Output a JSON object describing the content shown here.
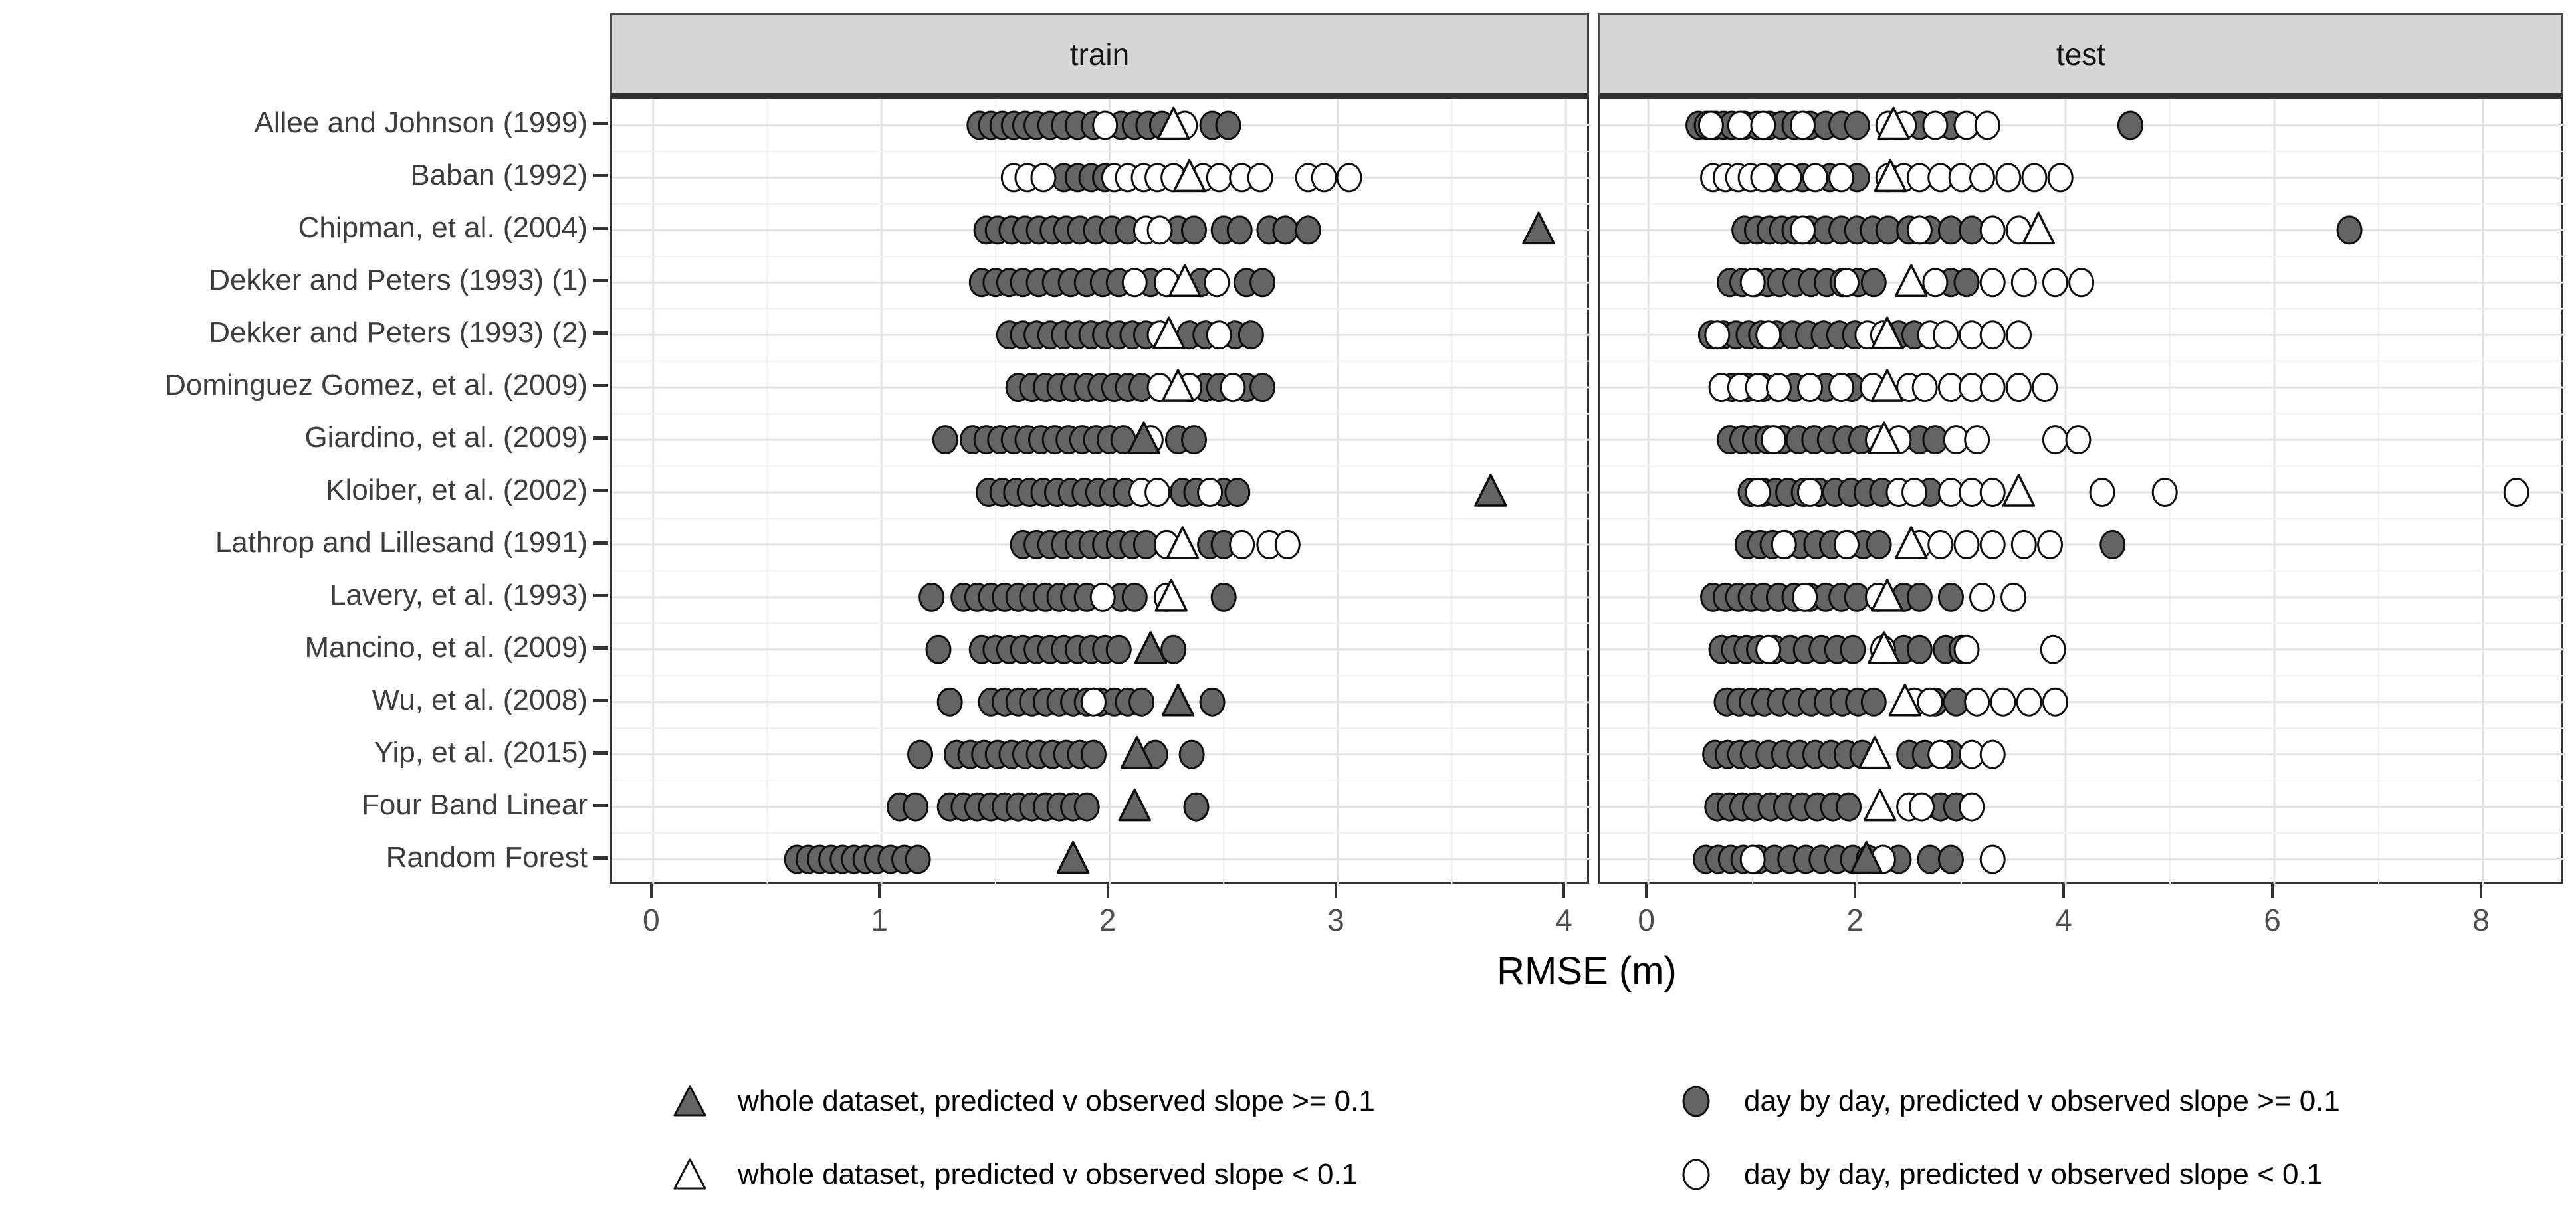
{
  "figure": {
    "facet_train_title": "train",
    "facet_test_title": "test",
    "x_axis_title": "RMSE (m)",
    "colors": {
      "point_fill": "#646464",
      "point_stroke": "#0d0d0d",
      "open_fill": "#ffffff",
      "strip_bg": "#d6d6d6",
      "panel_border": "#333333",
      "grid_major": "#e3e3e3",
      "grid_minor": "#f0f0f0",
      "axis_text": "#4d4d4d"
    }
  },
  "chart_data": {
    "type": "scatter",
    "title": "",
    "xlabel": "RMSE (m)",
    "ylabel": "",
    "grid": true,
    "legend_position": "bottom",
    "legend": [
      {
        "marker": "triangle-filled",
        "label": "whole dataset, predicted v observed slope >= 0.1"
      },
      {
        "marker": "triangle-open",
        "label": "whole dataset, predicted v observed slope < 0.1"
      },
      {
        "marker": "circle-filled",
        "label": "day by day, predicted v observed slope >= 0.1"
      },
      {
        "marker": "circle-open",
        "label": "day by day, predicted v observed slope < 0.1"
      }
    ],
    "facet_panels": [
      {
        "name": "train",
        "x_ticks": [
          0,
          1,
          2,
          3,
          4
        ],
        "x_minor": [
          0.5,
          1.5,
          2.5,
          3.5
        ],
        "xlim": [
          -0.18,
          4.11
        ]
      },
      {
        "name": "test",
        "x_ticks": [
          0,
          2,
          4,
          6,
          8
        ],
        "x_minor": [
          1,
          3,
          5,
          7
        ],
        "xlim": [
          -0.46,
          8.79
        ]
      }
    ],
    "categories": [
      "Allee and Johnson (1999)",
      "Baban (1992)",
      "Chipman, et al. (2004)",
      "Dekker and Peters (1993) (1)",
      "Dekker and Peters (1993) (2)",
      "Dominguez Gomez, et al. (2009)",
      "Giardino, et al. (2009)",
      "Kloiber, et al. (2002)",
      "Lathrop and Lillesand (1991)",
      "Lavery, et al. (1993)",
      "Mancino, et al. (2009)",
      "Wu, et al. (2008)",
      "Yip, et al. (2015)",
      "Four Band Linear",
      "Random Forest"
    ],
    "rows": [
      {
        "label": "Allee and Johnson (1999)",
        "train": {
          "filled_circles": [
            1.43,
            1.48,
            1.53,
            1.58,
            1.63,
            1.68,
            1.74,
            1.8,
            1.86,
            1.93,
            2.05,
            2.11,
            2.17,
            2.23,
            2.45,
            2.52
          ],
          "open_circles": [
            1.98,
            2.33
          ],
          "triangle": {
            "x": 2.28,
            "filled": false
          }
        },
        "test": {
          "filled_circles": [
            0.48,
            0.56,
            0.64,
            0.72,
            0.8,
            0.92,
            1.04,
            1.16,
            1.28,
            1.4,
            1.55,
            1.7,
            1.85,
            2.0,
            2.6,
            2.9,
            4.62
          ],
          "open_circles": [
            0.6,
            0.88,
            1.1,
            1.48,
            2.3,
            2.45,
            2.75,
            3.05,
            3.25
          ],
          "triangle": {
            "x": 2.35,
            "filled": false
          }
        }
      },
      {
        "label": "Baban (1992)",
        "train": {
          "filled_circles": [
            1.8,
            1.86,
            1.92,
            1.98
          ],
          "open_circles": [
            1.58,
            1.64,
            1.71,
            2.02,
            2.08,
            2.15,
            2.21,
            2.28,
            2.41,
            2.48,
            2.58,
            2.66,
            2.87,
            2.94,
            3.05
          ],
          "triangle": {
            "x": 2.35,
            "filled": false
          }
        },
        "test": {
          "filled_circles": [
            1.22,
            1.48,
            1.74,
            2.0
          ],
          "open_circles": [
            0.62,
            0.74,
            0.86,
            0.98,
            1.1,
            1.35,
            1.6,
            1.85,
            2.3,
            2.45,
            2.6,
            2.8,
            3.0,
            3.2,
            3.45,
            3.7,
            3.95
          ],
          "triangle": {
            "x": 2.32,
            "filled": false
          }
        }
      },
      {
        "label": "Chipman, et al. (2004)",
        "train": {
          "filled_circles": [
            1.46,
            1.51,
            1.57,
            1.63,
            1.69,
            1.75,
            1.81,
            1.87,
            1.94,
            2.01,
            2.08,
            2.3,
            2.37,
            2.5,
            2.57,
            2.7,
            2.77,
            2.87
          ],
          "open_circles": [
            2.16,
            2.22
          ],
          "triangle": {
            "x": 3.88,
            "filled": true
          }
        },
        "test": {
          "filled_circles": [
            0.92,
            1.04,
            1.16,
            1.28,
            1.4,
            1.55,
            1.7,
            1.85,
            2.0,
            2.15,
            2.3,
            2.5,
            2.7,
            2.9,
            3.1,
            6.72
          ],
          "open_circles": [
            1.48,
            2.6,
            3.3,
            3.55
          ],
          "triangle": {
            "x": 3.74,
            "filled": false
          }
        }
      },
      {
        "label": "Dekker and Peters (1993) (1)",
        "train": {
          "filled_circles": [
            1.44,
            1.5,
            1.56,
            1.62,
            1.69,
            1.76,
            1.83,
            1.9,
            1.97,
            2.04,
            2.18,
            2.4,
            2.6,
            2.67
          ],
          "open_circles": [
            2.11,
            2.25,
            2.47
          ],
          "triangle": {
            "x": 2.33,
            "filled": false
          }
        },
        "test": {
          "filled_circles": [
            0.78,
            0.9,
            1.02,
            1.14,
            1.26,
            1.41,
            1.56,
            1.71,
            1.86,
            2.01,
            2.16,
            2.9,
            3.05
          ],
          "open_circles": [
            1.0,
            1.9,
            2.75,
            3.3,
            3.6,
            3.9,
            4.15
          ],
          "triangle": {
            "x": 2.52,
            "filled": false
          }
        }
      },
      {
        "label": "Dekker and Peters (1993) (2)",
        "train": {
          "filled_circles": [
            1.56,
            1.62,
            1.68,
            1.74,
            1.8,
            1.86,
            1.92,
            1.98,
            2.04,
            2.1,
            2.16,
            2.35,
            2.42,
            2.55,
            2.62
          ],
          "open_circles": [
            2.22,
            2.48
          ],
          "triangle": {
            "x": 2.26,
            "filled": false
          }
        },
        "test": {
          "filled_circles": [
            0.6,
            0.72,
            0.84,
            0.96,
            1.08,
            1.23,
            1.38,
            1.53,
            1.68,
            1.83,
            1.98,
            2.4,
            2.55
          ],
          "open_circles": [
            0.66,
            1.15,
            2.1,
            2.25,
            2.7,
            2.85,
            3.1,
            3.3,
            3.55
          ],
          "triangle": {
            "x": 2.29,
            "filled": false
          }
        }
      },
      {
        "label": "Dominguez Gomez, et al. (2009)",
        "train": {
          "filled_circles": [
            1.6,
            1.66,
            1.72,
            1.78,
            1.84,
            1.9,
            1.96,
            2.02,
            2.08,
            2.14,
            2.42,
            2.48,
            2.6,
            2.67
          ],
          "open_circles": [
            2.22,
            2.35,
            2.54
          ],
          "triangle": {
            "x": 2.3,
            "filled": false
          }
        },
        "test": {
          "filled_circles": [
            0.8,
            0.95,
            1.1,
            1.4,
            1.7,
            1.95
          ],
          "open_circles": [
            0.7,
            0.88,
            1.05,
            1.25,
            1.55,
            1.85,
            2.15,
            2.5,
            2.65,
            2.9,
            3.1,
            3.3,
            3.55,
            3.8
          ],
          "triangle": {
            "x": 2.29,
            "filled": false
          }
        }
      },
      {
        "label": "Giardino, et al. (2009)",
        "train": {
          "filled_circles": [
            1.28,
            1.4,
            1.46,
            1.52,
            1.58,
            1.64,
            1.7,
            1.76,
            1.82,
            1.88,
            1.94,
            2.0,
            2.06,
            2.3,
            2.37
          ],
          "open_circles": [
            2.18
          ],
          "triangle": {
            "x": 2.15,
            "filled": true
          }
        },
        "test": {
          "filled_circles": [
            0.78,
            0.9,
            1.02,
            1.14,
            1.29,
            1.44,
            1.59,
            1.74,
            1.89,
            2.04,
            2.6,
            2.75
          ],
          "open_circles": [
            1.2,
            2.2,
            2.4,
            2.95,
            3.15,
            3.9,
            4.12
          ],
          "triangle": {
            "x": 2.26,
            "filled": false
          }
        }
      },
      {
        "label": "Kloiber, et al. (2002)",
        "train": {
          "filled_circles": [
            1.47,
            1.53,
            1.59,
            1.65,
            1.71,
            1.77,
            1.83,
            1.89,
            1.95,
            2.01,
            2.07,
            2.32,
            2.38,
            2.5,
            2.56
          ],
          "open_circles": [
            2.14,
            2.21,
            2.44
          ],
          "triangle": {
            "x": 3.67,
            "filled": true
          }
        },
        "test": {
          "filled_circles": [
            0.98,
            1.1,
            1.22,
            1.34,
            1.49,
            1.64,
            1.79,
            1.94,
            2.09,
            2.24,
            2.7
          ],
          "open_circles": [
            1.05,
            1.55,
            2.4,
            2.55,
            2.9,
            3.1,
            3.3,
            4.35,
            4.95,
            8.32
          ],
          "triangle": {
            "x": 3.55,
            "filled": false
          }
        }
      },
      {
        "label": "Lathrop and Lillesand (1991)",
        "train": {
          "filled_circles": [
            1.62,
            1.68,
            1.74,
            1.8,
            1.86,
            1.92,
            1.98,
            2.04,
            2.1,
            2.16,
            2.44,
            2.5
          ],
          "open_circles": [
            2.25,
            2.58,
            2.7,
            2.78
          ],
          "triangle": {
            "x": 2.32,
            "filled": false
          }
        },
        "test": {
          "filled_circles": [
            0.95,
            1.07,
            1.19,
            1.31,
            1.46,
            1.61,
            1.76,
            1.91,
            2.06,
            2.21,
            4.45
          ],
          "open_circles": [
            1.3,
            1.9,
            2.6,
            2.8,
            3.05,
            3.3,
            3.6,
            3.85
          ],
          "triangle": {
            "x": 2.52,
            "filled": false
          }
        }
      },
      {
        "label": "Lavery, et al. (1993)",
        "train": {
          "filled_circles": [
            1.22,
            1.36,
            1.42,
            1.48,
            1.54,
            1.6,
            1.66,
            1.72,
            1.78,
            1.84,
            1.9,
            2.05,
            2.11,
            2.5
          ],
          "open_circles": [
            1.97,
            2.25
          ],
          "triangle": {
            "x": 2.27,
            "filled": false
          }
        },
        "test": {
          "filled_circles": [
            0.62,
            0.74,
            0.86,
            0.98,
            1.1,
            1.25,
            1.4,
            1.55,
            1.7,
            1.85,
            2.0,
            2.45,
            2.6,
            2.9
          ],
          "open_circles": [
            1.5,
            2.2,
            3.2,
            3.5
          ],
          "triangle": {
            "x": 2.29,
            "filled": false
          }
        }
      },
      {
        "label": "Mancino, et al. (2009)",
        "train": {
          "filled_circles": [
            1.25,
            1.44,
            1.5,
            1.56,
            1.62,
            1.68,
            1.74,
            1.8,
            1.86,
            1.92,
            1.98,
            2.04,
            2.28
          ],
          "open_circles": [],
          "triangle": {
            "x": 2.18,
            "filled": true
          }
        },
        "test": {
          "filled_circles": [
            0.7,
            0.82,
            0.94,
            1.06,
            1.21,
            1.36,
            1.51,
            1.66,
            1.81,
            1.96,
            2.45,
            2.6,
            2.85,
            3.0
          ],
          "open_circles": [
            1.15,
            2.25,
            3.05,
            3.88
          ],
          "triangle": {
            "x": 2.26,
            "filled": false
          }
        }
      },
      {
        "label": "Wu, et al. (2008)",
        "train": {
          "filled_circles": [
            1.3,
            1.48,
            1.54,
            1.6,
            1.66,
            1.72,
            1.78,
            1.84,
            1.9,
            1.96,
            2.02,
            2.08,
            2.14,
            2.45
          ],
          "open_circles": [
            1.93
          ],
          "triangle": {
            "x": 2.3,
            "filled": true
          }
        },
        "test": {
          "filled_circles": [
            0.75,
            0.87,
            0.99,
            1.11,
            1.26,
            1.41,
            1.56,
            1.71,
            1.86,
            2.01,
            2.16,
            2.75,
            2.95
          ],
          "open_circles": [
            2.55,
            2.7,
            3.15,
            3.4,
            3.65,
            3.9
          ],
          "triangle": {
            "x": 2.46,
            "filled": false
          }
        }
      },
      {
        "label": "Yip, et al. (2015)",
        "train": {
          "filled_circles": [
            1.17,
            1.33,
            1.39,
            1.45,
            1.51,
            1.57,
            1.63,
            1.69,
            1.75,
            1.81,
            1.87,
            1.93,
            2.2,
            2.36
          ],
          "open_circles": [],
          "triangle": {
            "x": 2.12,
            "filled": true
          }
        },
        "test": {
          "filled_circles": [
            0.64,
            0.76,
            0.88,
            1.0,
            1.15,
            1.3,
            1.45,
            1.6,
            1.75,
            1.9,
            2.05,
            2.5,
            2.65,
            2.9
          ],
          "open_circles": [
            2.8,
            3.1,
            3.3
          ],
          "triangle": {
            "x": 2.17,
            "filled": false
          }
        }
      },
      {
        "label": "Four Band Linear",
        "train": {
          "filled_circles": [
            1.08,
            1.15,
            1.3,
            1.36,
            1.42,
            1.48,
            1.54,
            1.6,
            1.66,
            1.72,
            1.78,
            1.84,
            1.9,
            2.38
          ],
          "open_circles": [],
          "triangle": {
            "x": 2.11,
            "filled": true
          }
        },
        "test": {
          "filled_circles": [
            0.66,
            0.78,
            0.9,
            1.02,
            1.17,
            1.32,
            1.47,
            1.62,
            1.77,
            1.92,
            2.8,
            2.95
          ],
          "open_circles": [
            2.5,
            2.62,
            3.1
          ],
          "triangle": {
            "x": 2.22,
            "filled": false
          }
        }
      },
      {
        "label": "Random Forest",
        "train": {
          "filled_circles": [
            0.63,
            0.68,
            0.73,
            0.78,
            0.83,
            0.88,
            0.93,
            0.98,
            1.04,
            1.1,
            1.16
          ],
          "open_circles": [],
          "triangle": {
            "x": 1.84,
            "filled": true
          }
        },
        "test": {
          "filled_circles": [
            0.55,
            0.67,
            0.79,
            0.91,
            1.06,
            1.21,
            1.36,
            1.51,
            1.66,
            1.81,
            1.96,
            2.11,
            2.4,
            2.7,
            2.9
          ],
          "open_circles": [
            1.0,
            2.25,
            3.3
          ],
          "triangle": {
            "x": 2.09,
            "filled": true
          }
        }
      }
    ]
  }
}
